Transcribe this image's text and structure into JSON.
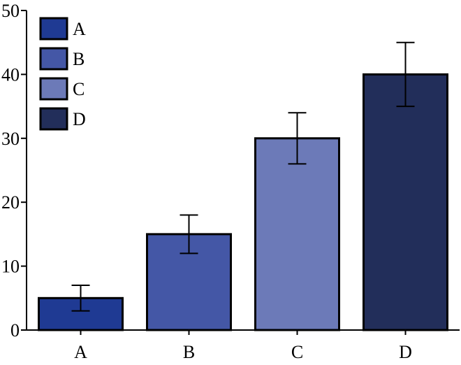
{
  "chart_data": {
    "type": "bar",
    "title": "",
    "xlabel": "",
    "ylabel": "",
    "ylim": [
      0,
      50
    ],
    "yticks": [
      0,
      10,
      20,
      30,
      40,
      50
    ],
    "categories": [
      "A",
      "B",
      "C",
      "D"
    ],
    "values": [
      5,
      15,
      30,
      40
    ],
    "errors": [
      2,
      3,
      4,
      5
    ],
    "colors": [
      "#1f3a93",
      "#4457a6",
      "#6c7ab8",
      "#222e5a"
    ],
    "legend": {
      "placement": "top-left",
      "entries": [
        "A",
        "B",
        "C",
        "D"
      ]
    },
    "grid": false
  }
}
